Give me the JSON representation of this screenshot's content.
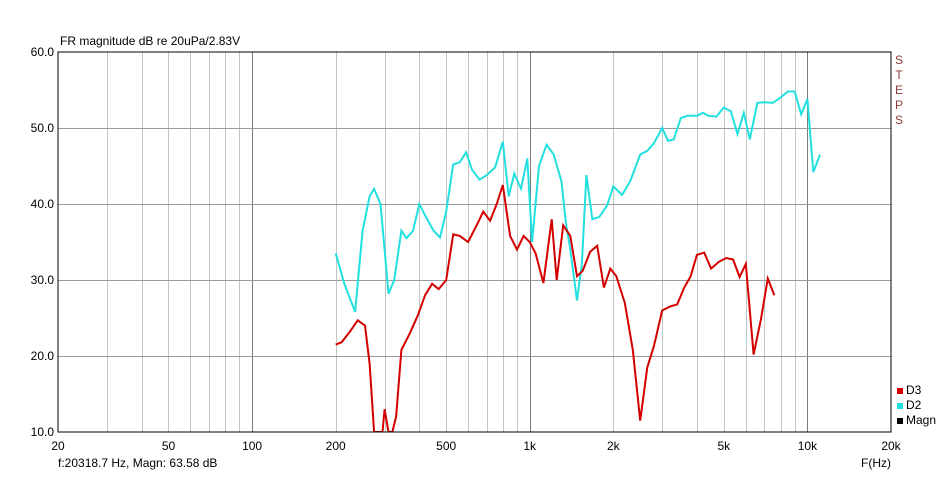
{
  "chart_data": {
    "type": "line",
    "title": "FR magnitude dB re 20uPa/2.83V",
    "xlabel": "F(Hz)",
    "x_scale": "log",
    "xlim": [
      20,
      20000
    ],
    "ylim": [
      10,
      60
    ],
    "grid": true,
    "x_ticks": [
      {
        "value": 20,
        "label": "20"
      },
      {
        "value": 50,
        "label": "50"
      },
      {
        "value": 100,
        "label": "100"
      },
      {
        "value": 200,
        "label": "200"
      },
      {
        "value": 500,
        "label": "500"
      },
      {
        "value": 1000,
        "label": "1k"
      },
      {
        "value": 2000,
        "label": "2k"
      },
      {
        "value": 5000,
        "label": "5k"
      },
      {
        "value": 10000,
        "label": "10k"
      },
      {
        "value": 20000,
        "label": "20k"
      }
    ],
    "y_ticks": [
      {
        "value": 10,
        "label": "10.0"
      },
      {
        "value": 20,
        "label": "20.0"
      },
      {
        "value": 30,
        "label": "30.0"
      },
      {
        "value": 40,
        "label": "40.0"
      },
      {
        "value": 50,
        "label": "50.0"
      },
      {
        "value": 60,
        "label": "60.0"
      }
    ],
    "side_label": "STEPS",
    "status": "f:20318.7 Hz, Magn: 63.58 dB",
    "legend": [
      {
        "name": "D3",
        "color": "#d40000"
      },
      {
        "name": "D2",
        "color": "#22e0e0"
      },
      {
        "name": "Magn",
        "color": "#000000"
      }
    ],
    "legend_position": "bottom-right",
    "series": [
      {
        "name": "D2",
        "color": "#22e0e0",
        "points": [
          [
            200,
            33.5
          ],
          [
            215,
            29.5
          ],
          [
            235,
            25.8
          ],
          [
            250,
            36.5
          ],
          [
            265,
            41.0
          ],
          [
            275,
            42.0
          ],
          [
            290,
            40.0
          ],
          [
            300,
            34.0
          ],
          [
            310,
            28.2
          ],
          [
            325,
            30.0
          ],
          [
            345,
            36.5
          ],
          [
            360,
            35.5
          ],
          [
            380,
            36.5
          ],
          [
            400,
            40.0
          ],
          [
            420,
            38.5
          ],
          [
            450,
            36.5
          ],
          [
            475,
            35.6
          ],
          [
            500,
            39.0
          ],
          [
            530,
            45.2
          ],
          [
            560,
            45.5
          ],
          [
            590,
            46.8
          ],
          [
            620,
            44.5
          ],
          [
            660,
            43.2
          ],
          [
            700,
            43.8
          ],
          [
            750,
            44.8
          ],
          [
            800,
            48.2
          ],
          [
            840,
            41.0
          ],
          [
            880,
            44.0
          ],
          [
            930,
            42.0
          ],
          [
            980,
            46.0
          ],
          [
            1020,
            35.0
          ],
          [
            1080,
            45.0
          ],
          [
            1150,
            47.8
          ],
          [
            1220,
            46.5
          ],
          [
            1300,
            43.0
          ],
          [
            1350,
            37.5
          ],
          [
            1400,
            34.0
          ],
          [
            1480,
            27.3
          ],
          [
            1540,
            32.0
          ],
          [
            1600,
            43.8
          ],
          [
            1680,
            38.0
          ],
          [
            1780,
            38.3
          ],
          [
            1900,
            39.8
          ],
          [
            2000,
            42.3
          ],
          [
            2150,
            41.2
          ],
          [
            2300,
            43.0
          ],
          [
            2500,
            46.5
          ],
          [
            2650,
            47.0
          ],
          [
            2800,
            48.0
          ],
          [
            3000,
            50.0
          ],
          [
            3150,
            48.3
          ],
          [
            3300,
            48.5
          ],
          [
            3500,
            51.3
          ],
          [
            3700,
            51.6
          ],
          [
            4000,
            51.6
          ],
          [
            4200,
            52.0
          ],
          [
            4400,
            51.6
          ],
          [
            4700,
            51.5
          ],
          [
            5000,
            52.7
          ],
          [
            5300,
            52.2
          ],
          [
            5600,
            49.2
          ],
          [
            5900,
            52.0
          ],
          [
            6200,
            48.5
          ],
          [
            6600,
            53.3
          ],
          [
            7000,
            53.4
          ],
          [
            7500,
            53.3
          ],
          [
            8000,
            54.0
          ],
          [
            8500,
            54.8
          ],
          [
            9000,
            54.8
          ],
          [
            9500,
            51.8
          ],
          [
            10000,
            53.8
          ],
          [
            10500,
            44.2
          ],
          [
            11100,
            46.5
          ]
        ]
      },
      {
        "name": "D3",
        "color": "#d40000",
        "points": [
          [
            200,
            21.5
          ],
          [
            210,
            21.8
          ],
          [
            225,
            23.2
          ],
          [
            240,
            24.7
          ],
          [
            255,
            24.0
          ],
          [
            265,
            19.0
          ],
          [
            275,
            10.0
          ],
          [
            295,
            10.0
          ],
          [
            300,
            13.0
          ],
          [
            310,
            10.0
          ],
          [
            320,
            10.0
          ],
          [
            330,
            12.0
          ],
          [
            345,
            20.8
          ],
          [
            370,
            23.0
          ],
          [
            395,
            25.3
          ],
          [
            420,
            28.0
          ],
          [
            445,
            29.5
          ],
          [
            470,
            28.8
          ],
          [
            500,
            30.0
          ],
          [
            530,
            36.0
          ],
          [
            560,
            35.8
          ],
          [
            600,
            35.0
          ],
          [
            650,
            37.5
          ],
          [
            680,
            39.0
          ],
          [
            720,
            37.8
          ],
          [
            760,
            40.0
          ],
          [
            800,
            42.5
          ],
          [
            850,
            35.8
          ],
          [
            900,
            34.0
          ],
          [
            950,
            35.8
          ],
          [
            1000,
            35.0
          ],
          [
            1050,
            33.5
          ],
          [
            1120,
            29.6
          ],
          [
            1200,
            38.0
          ],
          [
            1250,
            30.0
          ],
          [
            1320,
            37.2
          ],
          [
            1400,
            35.8
          ],
          [
            1480,
            30.5
          ],
          [
            1550,
            31.2
          ],
          [
            1650,
            33.7
          ],
          [
            1750,
            34.5
          ],
          [
            1850,
            29.0
          ],
          [
            1950,
            31.5
          ],
          [
            2050,
            30.5
          ],
          [
            2200,
            27.0
          ],
          [
            2350,
            20.8
          ],
          [
            2500,
            11.5
          ],
          [
            2650,
            18.5
          ],
          [
            2800,
            21.3
          ],
          [
            3000,
            26.0
          ],
          [
            3200,
            26.5
          ],
          [
            3400,
            26.8
          ],
          [
            3600,
            29.0
          ],
          [
            3800,
            30.5
          ],
          [
            4000,
            33.3
          ],
          [
            4250,
            33.6
          ],
          [
            4500,
            31.5
          ],
          [
            4800,
            32.4
          ],
          [
            5100,
            32.9
          ],
          [
            5400,
            32.7
          ],
          [
            5700,
            30.4
          ],
          [
            6000,
            32.1
          ],
          [
            6400,
            20.2
          ],
          [
            6800,
            24.8
          ],
          [
            7200,
            30.2
          ],
          [
            7600,
            28.0
          ]
        ]
      }
    ]
  }
}
